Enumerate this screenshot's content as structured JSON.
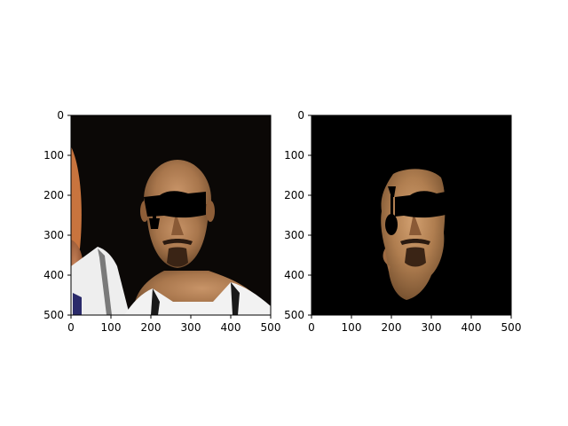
{
  "figure": {
    "background": "#ffffff",
    "axis_color": "#000000"
  },
  "chart_data": [
    {
      "type": "image",
      "panel": "left",
      "content": "photo of a basketball player's face with a black bar and a graduation-cap shape drawn over the eyes",
      "xlim": [
        0,
        500
      ],
      "ylim": [
        500,
        0
      ],
      "xticks": [
        "0",
        "100",
        "200",
        "300",
        "400",
        "500"
      ],
      "yticks": [
        "0",
        "100",
        "200",
        "300",
        "400",
        "500"
      ],
      "title": "",
      "xlabel": "",
      "ylabel": ""
    },
    {
      "type": "image",
      "panel": "right",
      "content": "same face segmented from the photo on a black background, with the same black bar and cap shape over the eyes",
      "xlim": [
        0,
        500
      ],
      "ylim": [
        500,
        0
      ],
      "xticks": [
        "0",
        "100",
        "200",
        "300",
        "400",
        "500"
      ],
      "yticks": [
        "0",
        "100",
        "200",
        "300",
        "400",
        "500"
      ],
      "title": "",
      "xlabel": "",
      "ylabel": ""
    }
  ]
}
